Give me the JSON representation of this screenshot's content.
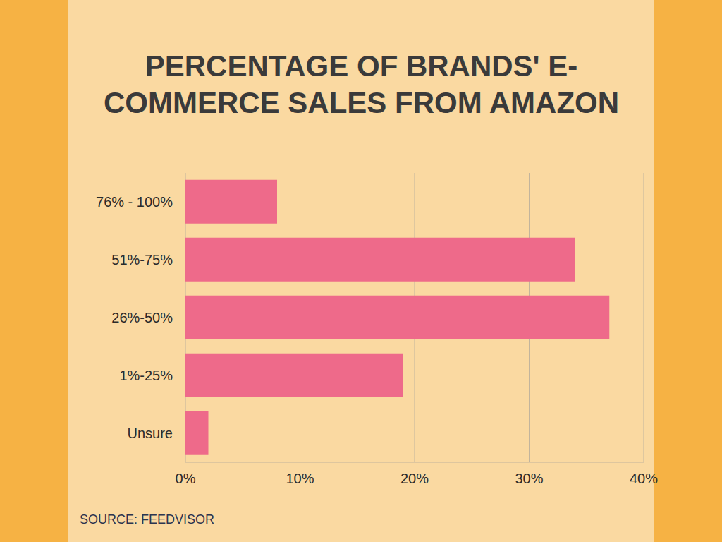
{
  "chart_data": {
    "type": "bar",
    "title": "PERCENTAGE OF BRANDS' E-\nCOMMERCE SALES FROM AMAZON",
    "categories": [
      "76% - 100%",
      "51%-75%",
      "26%-50%",
      "1%-25%",
      "Unsure"
    ],
    "values": [
      8,
      34,
      37,
      19,
      2
    ],
    "color": "#ee6a8a",
    "orientation": "horizontal",
    "xlim": [
      0,
      40
    ],
    "xticks": [
      {
        "value": 0,
        "label": "0%"
      },
      {
        "value": 10,
        "label": "10%"
      },
      {
        "value": 20,
        "label": "20%"
      },
      {
        "value": 30,
        "label": "30%"
      },
      {
        "value": 40,
        "label": "40%"
      }
    ],
    "grid": true,
    "source": "SOURCE: FEEDVISOR"
  }
}
